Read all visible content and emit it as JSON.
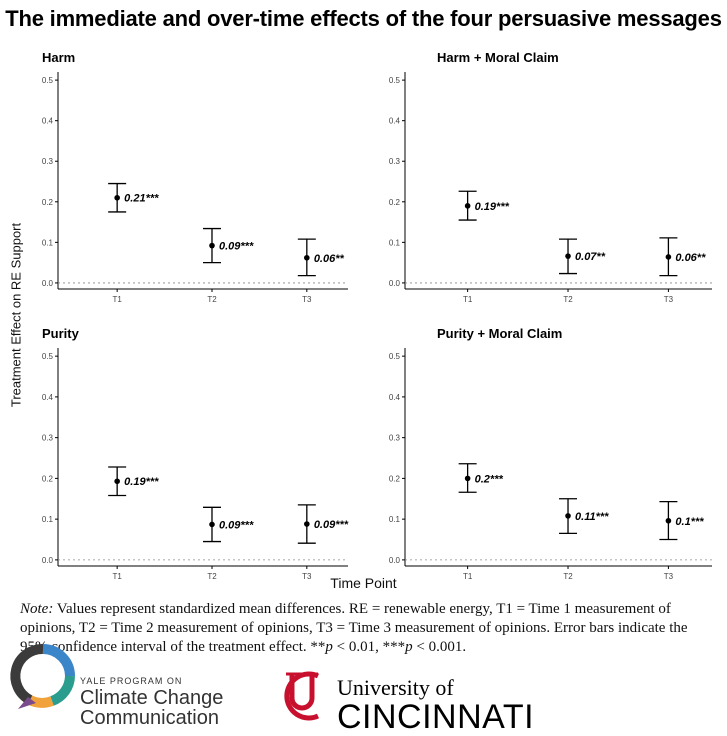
{
  "title": "The immediate and over-time effects of the four persuasive messages",
  "y_axis_label": "Treatment Effect on RE Support",
  "x_axis_label": "Time Point",
  "note": {
    "prefix": "Note:",
    "text_part1": " Values represent standardized mean differences. RE = renewable energy, T1 = Time 1 measurement of opinions, T2 = Time 2 measurement of opinions, T3 = Time 3 measurement of opinions. Error bars indicate the 95% confidence interval of the treatment effect. **",
    "p1": "p",
    "text_part2": " < 0.01, ***",
    "p2": "p",
    "text_part3": " < 0.001."
  },
  "logos": {
    "yale_small": "YALE PROGRAM ON",
    "yale_line1": "Climate Change",
    "yale_line2": "Communication",
    "uc_small": "University of",
    "uc_big": "CINCINNATI"
  },
  "colors": {
    "point": "#000000",
    "zero_line": "#888888",
    "yale_teal": "#2a9d8f",
    "yale_blue": "#3a86c8",
    "yale_orange": "#f2a23a",
    "yale_purple": "#7a4b8c",
    "uc_red": "#c8102e"
  },
  "chart_data": [
    {
      "type": "scatter",
      "title": "Harm",
      "categories": [
        "T1",
        "T2",
        "T3"
      ],
      "values": [
        0.21,
        0.092,
        0.062
      ],
      "ci_low": [
        0.175,
        0.05,
        0.018
      ],
      "ci_high": [
        0.245,
        0.134,
        0.108
      ],
      "labels": [
        "0.21***",
        "0.09***",
        "0.06**"
      ],
      "yticks": [
        "0.0",
        "0.1",
        "0.2",
        "0.3",
        "0.4",
        "0.5"
      ],
      "ylim": [
        -0.015,
        0.52
      ]
    },
    {
      "type": "scatter",
      "title": "Harm + Moral Claim",
      "categories": [
        "T1",
        "T2",
        "T3"
      ],
      "values": [
        0.19,
        0.066,
        0.064
      ],
      "ci_low": [
        0.155,
        0.023,
        0.018
      ],
      "ci_high": [
        0.226,
        0.108,
        0.111
      ],
      "labels": [
        "0.19***",
        "0.07**",
        "0.06**"
      ],
      "yticks": [
        "0.0",
        "0.1",
        "0.2",
        "0.3",
        "0.4",
        "0.5"
      ],
      "ylim": [
        -0.015,
        0.52
      ]
    },
    {
      "type": "scatter",
      "title": "Purity",
      "categories": [
        "T1",
        "T2",
        "T3"
      ],
      "values": [
        0.193,
        0.087,
        0.088
      ],
      "ci_low": [
        0.158,
        0.045,
        0.041
      ],
      "ci_high": [
        0.228,
        0.129,
        0.135
      ],
      "labels": [
        "0.19***",
        "0.09***",
        "0.09***"
      ],
      "yticks": [
        "0.0",
        "0.1",
        "0.2",
        "0.3",
        "0.4",
        "0.5"
      ],
      "ylim": [
        -0.015,
        0.52
      ]
    },
    {
      "type": "scatter",
      "title": "Purity + Moral Claim",
      "categories": [
        "T1",
        "T2",
        "T3"
      ],
      "values": [
        0.2,
        0.108,
        0.096
      ],
      "ci_low": [
        0.166,
        0.065,
        0.05
      ],
      "ci_high": [
        0.236,
        0.15,
        0.143
      ],
      "labels": [
        "0.2***",
        "0.11***",
        "0.1***"
      ],
      "yticks": [
        "0.0",
        "0.1",
        "0.2",
        "0.3",
        "0.4",
        "0.5"
      ],
      "ylim": [
        -0.015,
        0.52
      ]
    }
  ]
}
